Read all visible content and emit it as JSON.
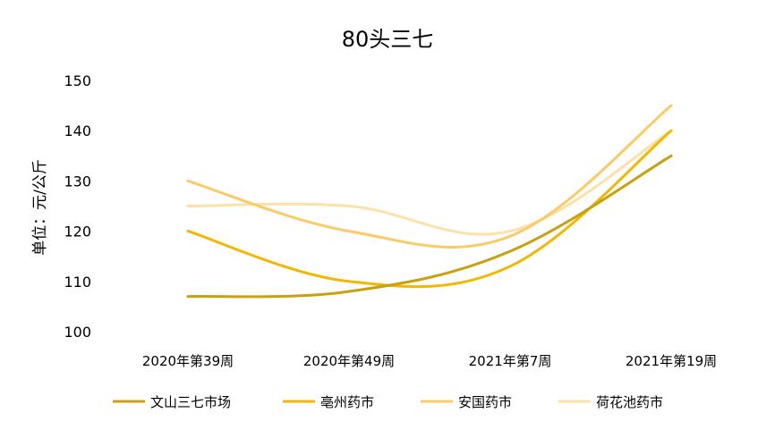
{
  "chart_data": {
    "type": "line",
    "title": "80头三七",
    "ylabel": "单位：元/公斤",
    "xlabel": "",
    "categories": [
      "2020年第39周",
      "2020年第49周",
      "2021年第7周",
      "2021年第19周"
    ],
    "ylim": [
      100,
      150
    ],
    "yticks": [
      100,
      110,
      120,
      130,
      140,
      150
    ],
    "grid": false,
    "legend_position": "bottom",
    "series": [
      {
        "name": "文山三七市场",
        "values": [
          107,
          108,
          116,
          135
        ],
        "color": "#C9A00E"
      },
      {
        "name": "亳州药市",
        "values": [
          120,
          110,
          113,
          140
        ],
        "color": "#F2B800"
      },
      {
        "name": "安国药市",
        "values": [
          130,
          120,
          119,
          145
        ],
        "color": "#FACB66"
      },
      {
        "name": "荷花池药市",
        "values": [
          125,
          125,
          120,
          140
        ],
        "color": "#FDE1A8"
      }
    ]
  }
}
